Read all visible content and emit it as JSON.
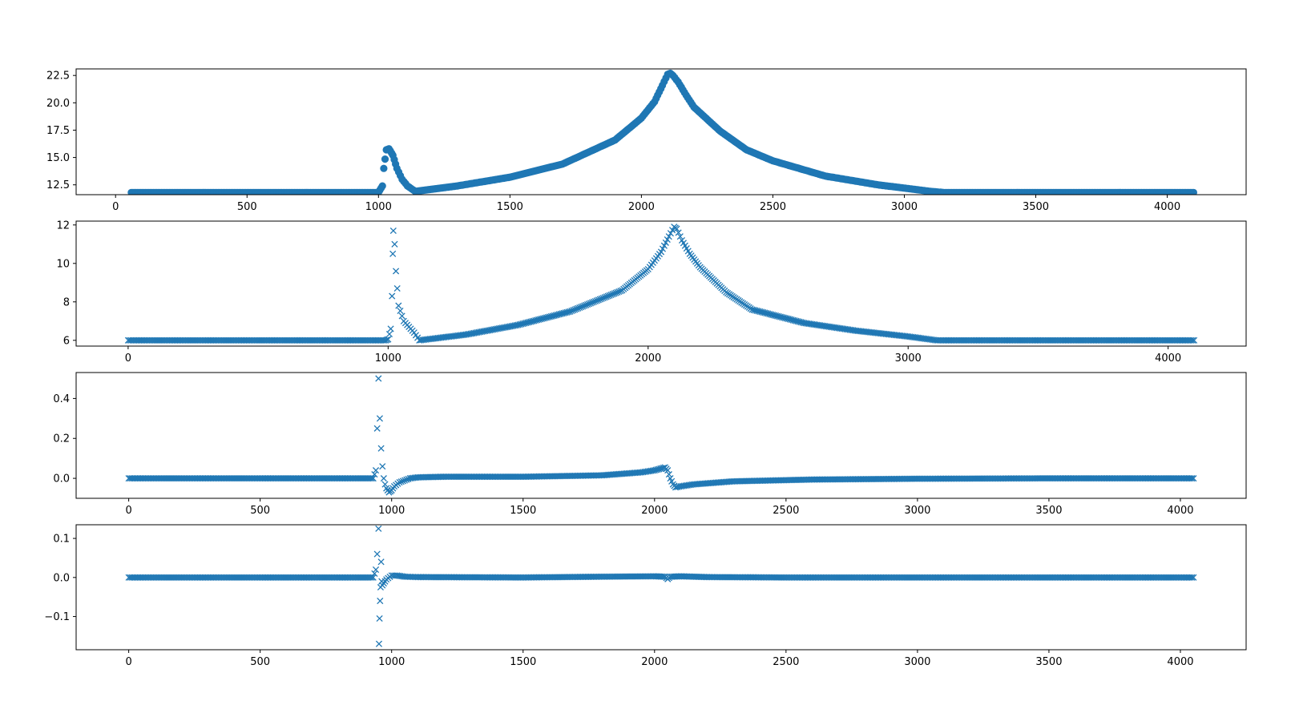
{
  "colors": {
    "series": "#1f77b4",
    "frame": "#000000",
    "background": "#ffffff"
  },
  "chart_data": [
    {
      "type": "scatter",
      "marker": "circle",
      "xlim": [
        -150,
        4300
      ],
      "ylim": [
        11.6,
        23.1
      ],
      "xticks": [
        0,
        500,
        1000,
        1500,
        2000,
        2500,
        3000,
        3500,
        4000
      ],
      "xtick_labels": [
        "0",
        "500",
        "1000",
        "1500",
        "2000",
        "2500",
        "3000",
        "3500",
        "4000"
      ],
      "yticks": [
        12.5,
        15.0,
        17.5,
        20.0,
        22.5
      ],
      "ytick_labels": [
        "12.5",
        "15.0",
        "17.5",
        "20.0",
        "22.5"
      ],
      "x": [
        60,
        500,
        1000,
        1015,
        1020,
        1030,
        1040,
        1055,
        1070,
        1090,
        1110,
        1140,
        1300,
        1500,
        1700,
        1900,
        2000,
        2050,
        2080,
        2100,
        2110,
        2120,
        2140,
        2170,
        2200,
        2300,
        2400,
        2500,
        2700,
        2900,
        3100,
        3150,
        3500,
        3800,
        4100
      ],
      "y": [
        11.8,
        11.8,
        11.8,
        12.4,
        14.0,
        15.7,
        15.8,
        15.2,
        14.0,
        13.0,
        12.4,
        11.9,
        12.4,
        13.2,
        14.4,
        16.6,
        18.6,
        20.1,
        21.6,
        22.6,
        22.7,
        22.5,
        21.9,
        20.7,
        19.6,
        17.4,
        15.7,
        14.7,
        13.3,
        12.5,
        11.9,
        11.8,
        11.8,
        11.8,
        11.8
      ]
    },
    {
      "type": "scatter",
      "marker": "x",
      "xlim": [
        -200,
        4300
      ],
      "ylim": [
        5.7,
        12.2
      ],
      "xticks": [
        0,
        1000,
        2000,
        3000,
        4000
      ],
      "xtick_labels": [
        "0",
        "1000",
        "2000",
        "3000",
        "4000"
      ],
      "yticks": [
        6,
        8,
        10,
        12
      ],
      "ytick_labels": [
        "6",
        "8",
        "10",
        "12"
      ],
      "x": [
        0,
        500,
        990,
        1000,
        1010,
        1015,
        1018,
        1020,
        1025,
        1030,
        1040,
        1060,
        1080,
        1100,
        1120,
        1300,
        1500,
        1700,
        1900,
        2000,
        2050,
        2080,
        2100,
        2110,
        2130,
        2160,
        2200,
        2300,
        2400,
        2600,
        2800,
        3000,
        3110,
        3500,
        4100
      ],
      "y": [
        6.0,
        6.0,
        6.0,
        6.05,
        6.6,
        8.3,
        10.5,
        11.7,
        11.0,
        9.6,
        7.8,
        7.0,
        6.7,
        6.4,
        6.0,
        6.3,
        6.8,
        7.5,
        8.6,
        9.7,
        10.6,
        11.4,
        11.9,
        11.8,
        11.2,
        10.5,
        9.8,
        8.5,
        7.6,
        6.9,
        6.5,
        6.2,
        6.0,
        6.0,
        6.0
      ]
    },
    {
      "type": "scatter",
      "marker": "x",
      "xlim": [
        -200,
        4250
      ],
      "ylim": [
        -0.1,
        0.53
      ],
      "xticks": [
        0,
        500,
        1000,
        1500,
        2000,
        2500,
        3000,
        3500,
        4000
      ],
      "xtick_labels": [
        "0",
        "500",
        "1000",
        "1500",
        "2000",
        "2500",
        "3000",
        "3500",
        "4000"
      ],
      "yticks": [
        0.0,
        0.2,
        0.4
      ],
      "ytick_labels": [
        "0.0",
        "0.2",
        "0.4"
      ],
      "x": [
        0,
        500,
        930,
        940,
        945,
        950,
        955,
        960,
        965,
        970,
        975,
        980,
        990,
        1000,
        1010,
        1030,
        1050,
        1070,
        1100,
        1200,
        1500,
        1800,
        1950,
        2000,
        2040,
        2050,
        2060,
        2070,
        2080,
        2100,
        2150,
        2300,
        2600,
        3000,
        3500,
        4050
      ],
      "y": [
        0.0,
        0.0,
        0.0,
        0.04,
        0.25,
        0.5,
        0.3,
        0.15,
        0.06,
        0.0,
        -0.03,
        -0.05,
        -0.07,
        -0.06,
        -0.04,
        -0.02,
        -0.01,
        0.0,
        0.005,
        0.008,
        0.008,
        0.015,
        0.03,
        0.04,
        0.055,
        0.04,
        0.0,
        -0.03,
        -0.045,
        -0.04,
        -0.03,
        -0.015,
        -0.006,
        -0.002,
        0.0,
        0.0
      ]
    },
    {
      "type": "scatter",
      "marker": "x",
      "xlim": [
        -200,
        4250
      ],
      "ylim": [
        -0.185,
        0.135
      ],
      "xticks": [
        0,
        500,
        1000,
        1500,
        2000,
        2500,
        3000,
        3500,
        4000
      ],
      "xtick_labels": [
        "0",
        "500",
        "1000",
        "1500",
        "2000",
        "2500",
        "3000",
        "3500",
        "4000"
      ],
      "yticks": [
        -0.1,
        0.0,
        0.1
      ],
      "ytick_labels": [
        "−0.1",
        "0.0",
        "0.1"
      ],
      "x": [
        0,
        500,
        930,
        940,
        945,
        950,
        952,
        954,
        956,
        958,
        960,
        962,
        965,
        970,
        980,
        1000,
        1020,
        1050,
        1100,
        1500,
        1800,
        2000,
        2040,
        2050,
        2060,
        2100,
        2200,
        2500,
        3000,
        3500,
        4050
      ],
      "y": [
        0.0,
        0.0,
        0.0,
        0.02,
        0.06,
        0.125,
        -0.17,
        -0.105,
        -0.06,
        -0.025,
        0.04,
        -0.01,
        -0.02,
        -0.015,
        -0.005,
        0.005,
        0.005,
        0.002,
        0.001,
        0.0,
        0.002,
        0.003,
        0.002,
        -0.004,
        0.002,
        0.003,
        0.001,
        0.0,
        0.0,
        0.0,
        0.0
      ]
    }
  ]
}
